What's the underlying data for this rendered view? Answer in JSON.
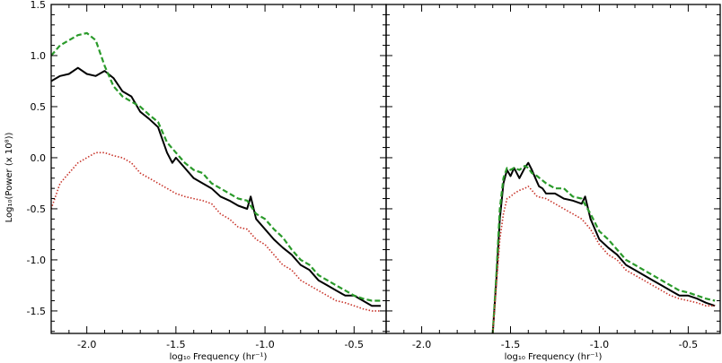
{
  "chart_data": {
    "type": "line",
    "ylabel": "Log₁₀(Power (x 10⁸))",
    "xlabel": "log₁₀ Frequency (hr⁻¹)",
    "series_colors": {
      "solid": "#000000",
      "dashed": "#2a9a2a",
      "dotted": "#c8342a"
    },
    "yticks": [
      "1.5",
      "1.0",
      "0.5",
      "0.0",
      "-0.5",
      "-1.0",
      "-1.5"
    ],
    "xticks": [
      "-2.0",
      "-1.5",
      "-1.0",
      "-0.5"
    ],
    "panels": [
      {
        "xlim": [
          -2.2,
          -0.32
        ],
        "ylim": [
          -1.72,
          1.5
        ],
        "series": [
          {
            "style": "solid",
            "x": [
              -2.2,
              -2.15,
              -2.1,
              -2.05,
              -2.0,
              -1.95,
              -1.9,
              -1.85,
              -1.8,
              -1.75,
              -1.7,
              -1.65,
              -1.6,
              -1.55,
              -1.52,
              -1.5,
              -1.45,
              -1.4,
              -1.35,
              -1.3,
              -1.25,
              -1.2,
              -1.15,
              -1.1,
              -1.08,
              -1.05,
              -1.0,
              -0.95,
              -0.9,
              -0.85,
              -0.8,
              -0.75,
              -0.7,
              -0.65,
              -0.6,
              -0.55,
              -0.5,
              -0.45,
              -0.4,
              -0.35
            ],
            "y": [
              0.75,
              0.8,
              0.82,
              0.88,
              0.82,
              0.8,
              0.85,
              0.78,
              0.65,
              0.6,
              0.45,
              0.38,
              0.3,
              0.05,
              -0.05,
              0.0,
              -0.1,
              -0.2,
              -0.25,
              -0.3,
              -0.38,
              -0.42,
              -0.47,
              -0.5,
              -0.38,
              -0.6,
              -0.7,
              -0.8,
              -0.88,
              -0.95,
              -1.05,
              -1.1,
              -1.2,
              -1.25,
              -1.3,
              -1.35,
              -1.35,
              -1.4,
              -1.45,
              -1.45
            ]
          },
          {
            "style": "dashed",
            "x": [
              -2.2,
              -2.15,
              -2.1,
              -2.05,
              -2.0,
              -1.95,
              -1.9,
              -1.85,
              -1.8,
              -1.75,
              -1.7,
              -1.65,
              -1.6,
              -1.55,
              -1.5,
              -1.45,
              -1.4,
              -1.35,
              -1.3,
              -1.25,
              -1.2,
              -1.15,
              -1.1,
              -1.05,
              -1.0,
              -0.95,
              -0.9,
              -0.85,
              -0.8,
              -0.75,
              -0.7,
              -0.65,
              -0.6,
              -0.55,
              -0.5,
              -0.45,
              -0.4,
              -0.35
            ],
            "y": [
              1.0,
              1.1,
              1.15,
              1.2,
              1.22,
              1.15,
              0.9,
              0.7,
              0.6,
              0.55,
              0.5,
              0.42,
              0.35,
              0.15,
              0.05,
              -0.05,
              -0.12,
              -0.15,
              -0.25,
              -0.3,
              -0.35,
              -0.4,
              -0.42,
              -0.55,
              -0.6,
              -0.7,
              -0.78,
              -0.9,
              -1.0,
              -1.05,
              -1.15,
              -1.2,
              -1.25,
              -1.3,
              -1.35,
              -1.38,
              -1.4,
              -1.4
            ]
          },
          {
            "style": "dotted",
            "x": [
              -2.2,
              -2.15,
              -2.1,
              -2.05,
              -2.0,
              -1.95,
              -1.9,
              -1.85,
              -1.8,
              -1.75,
              -1.7,
              -1.65,
              -1.6,
              -1.55,
              -1.5,
              -1.45,
              -1.4,
              -1.35,
              -1.3,
              -1.25,
              -1.2,
              -1.15,
              -1.1,
              -1.05,
              -1.0,
              -0.95,
              -0.9,
              -0.85,
              -0.8,
              -0.75,
              -0.7,
              -0.65,
              -0.6,
              -0.55,
              -0.5,
              -0.45,
              -0.4,
              -0.35
            ],
            "y": [
              -0.5,
              -0.25,
              -0.15,
              -0.05,
              0.0,
              0.05,
              0.05,
              0.02,
              0.0,
              -0.05,
              -0.15,
              -0.2,
              -0.25,
              -0.3,
              -0.35,
              -0.38,
              -0.4,
              -0.42,
              -0.45,
              -0.55,
              -0.6,
              -0.68,
              -0.7,
              -0.8,
              -0.85,
              -0.95,
              -1.05,
              -1.1,
              -1.2,
              -1.25,
              -1.3,
              -1.35,
              -1.4,
              -1.42,
              -1.45,
              -1.48,
              -1.5,
              -1.5
            ]
          }
        ]
      },
      {
        "xlim": [
          -2.2,
          -0.32
        ],
        "ylim": [
          -1.72,
          1.5
        ],
        "series": [
          {
            "style": "solid",
            "x": [
              -1.6,
              -1.58,
              -1.56,
              -1.54,
              -1.52,
              -1.5,
              -1.48,
              -1.45,
              -1.42,
              -1.4,
              -1.38,
              -1.36,
              -1.34,
              -1.32,
              -1.3,
              -1.25,
              -1.2,
              -1.15,
              -1.1,
              -1.08,
              -1.05,
              -1.0,
              -0.95,
              -0.9,
              -0.85,
              -0.8,
              -0.75,
              -0.7,
              -0.65,
              -0.6,
              -0.55,
              -0.5,
              -0.45,
              -0.4,
              -0.35
            ],
            "y": [
              -1.72,
              -1.2,
              -0.6,
              -0.25,
              -0.12,
              -0.18,
              -0.1,
              -0.2,
              -0.1,
              -0.05,
              -0.12,
              -0.2,
              -0.28,
              -0.3,
              -0.35,
              -0.35,
              -0.4,
              -0.42,
              -0.45,
              -0.38,
              -0.6,
              -0.8,
              -0.88,
              -0.95,
              -1.05,
              -1.1,
              -1.15,
              -1.2,
              -1.25,
              -1.3,
              -1.35,
              -1.35,
              -1.38,
              -1.42,
              -1.45
            ]
          },
          {
            "style": "dashed",
            "x": [
              -1.6,
              -1.58,
              -1.56,
              -1.54,
              -1.52,
              -1.5,
              -1.48,
              -1.45,
              -1.42,
              -1.4,
              -1.38,
              -1.35,
              -1.3,
              -1.25,
              -1.2,
              -1.15,
              -1.1,
              -1.05,
              -1.0,
              -0.95,
              -0.9,
              -0.85,
              -0.8,
              -0.75,
              -0.7,
              -0.65,
              -0.6,
              -0.55,
              -0.5,
              -0.45,
              -0.4,
              -0.35
            ],
            "y": [
              -1.72,
              -1.15,
              -0.5,
              -0.2,
              -0.1,
              -0.12,
              -0.1,
              -0.12,
              -0.08,
              -0.1,
              -0.15,
              -0.18,
              -0.25,
              -0.3,
              -0.3,
              -0.38,
              -0.4,
              -0.55,
              -0.72,
              -0.8,
              -0.9,
              -1.0,
              -1.05,
              -1.1,
              -1.15,
              -1.2,
              -1.25,
              -1.3,
              -1.32,
              -1.35,
              -1.38,
              -1.4
            ]
          },
          {
            "style": "dotted",
            "x": [
              -1.6,
              -1.58,
              -1.56,
              -1.54,
              -1.52,
              -1.5,
              -1.48,
              -1.45,
              -1.42,
              -1.4,
              -1.38,
              -1.35,
              -1.3,
              -1.25,
              -1.2,
              -1.15,
              -1.1,
              -1.05,
              -1.0,
              -0.95,
              -0.9,
              -0.85,
              -0.8,
              -0.75,
              -0.7,
              -0.65,
              -0.6,
              -0.55,
              -0.5,
              -0.45,
              -0.4,
              -0.35
            ],
            "y": [
              -1.72,
              -1.25,
              -0.8,
              -0.55,
              -0.4,
              -0.38,
              -0.35,
              -0.32,
              -0.3,
              -0.28,
              -0.32,
              -0.38,
              -0.4,
              -0.45,
              -0.5,
              -0.55,
              -0.6,
              -0.7,
              -0.85,
              -0.95,
              -1.0,
              -1.1,
              -1.15,
              -1.2,
              -1.25,
              -1.3,
              -1.35,
              -1.38,
              -1.4,
              -1.42,
              -1.45,
              -1.45
            ]
          }
        ]
      }
    ]
  }
}
